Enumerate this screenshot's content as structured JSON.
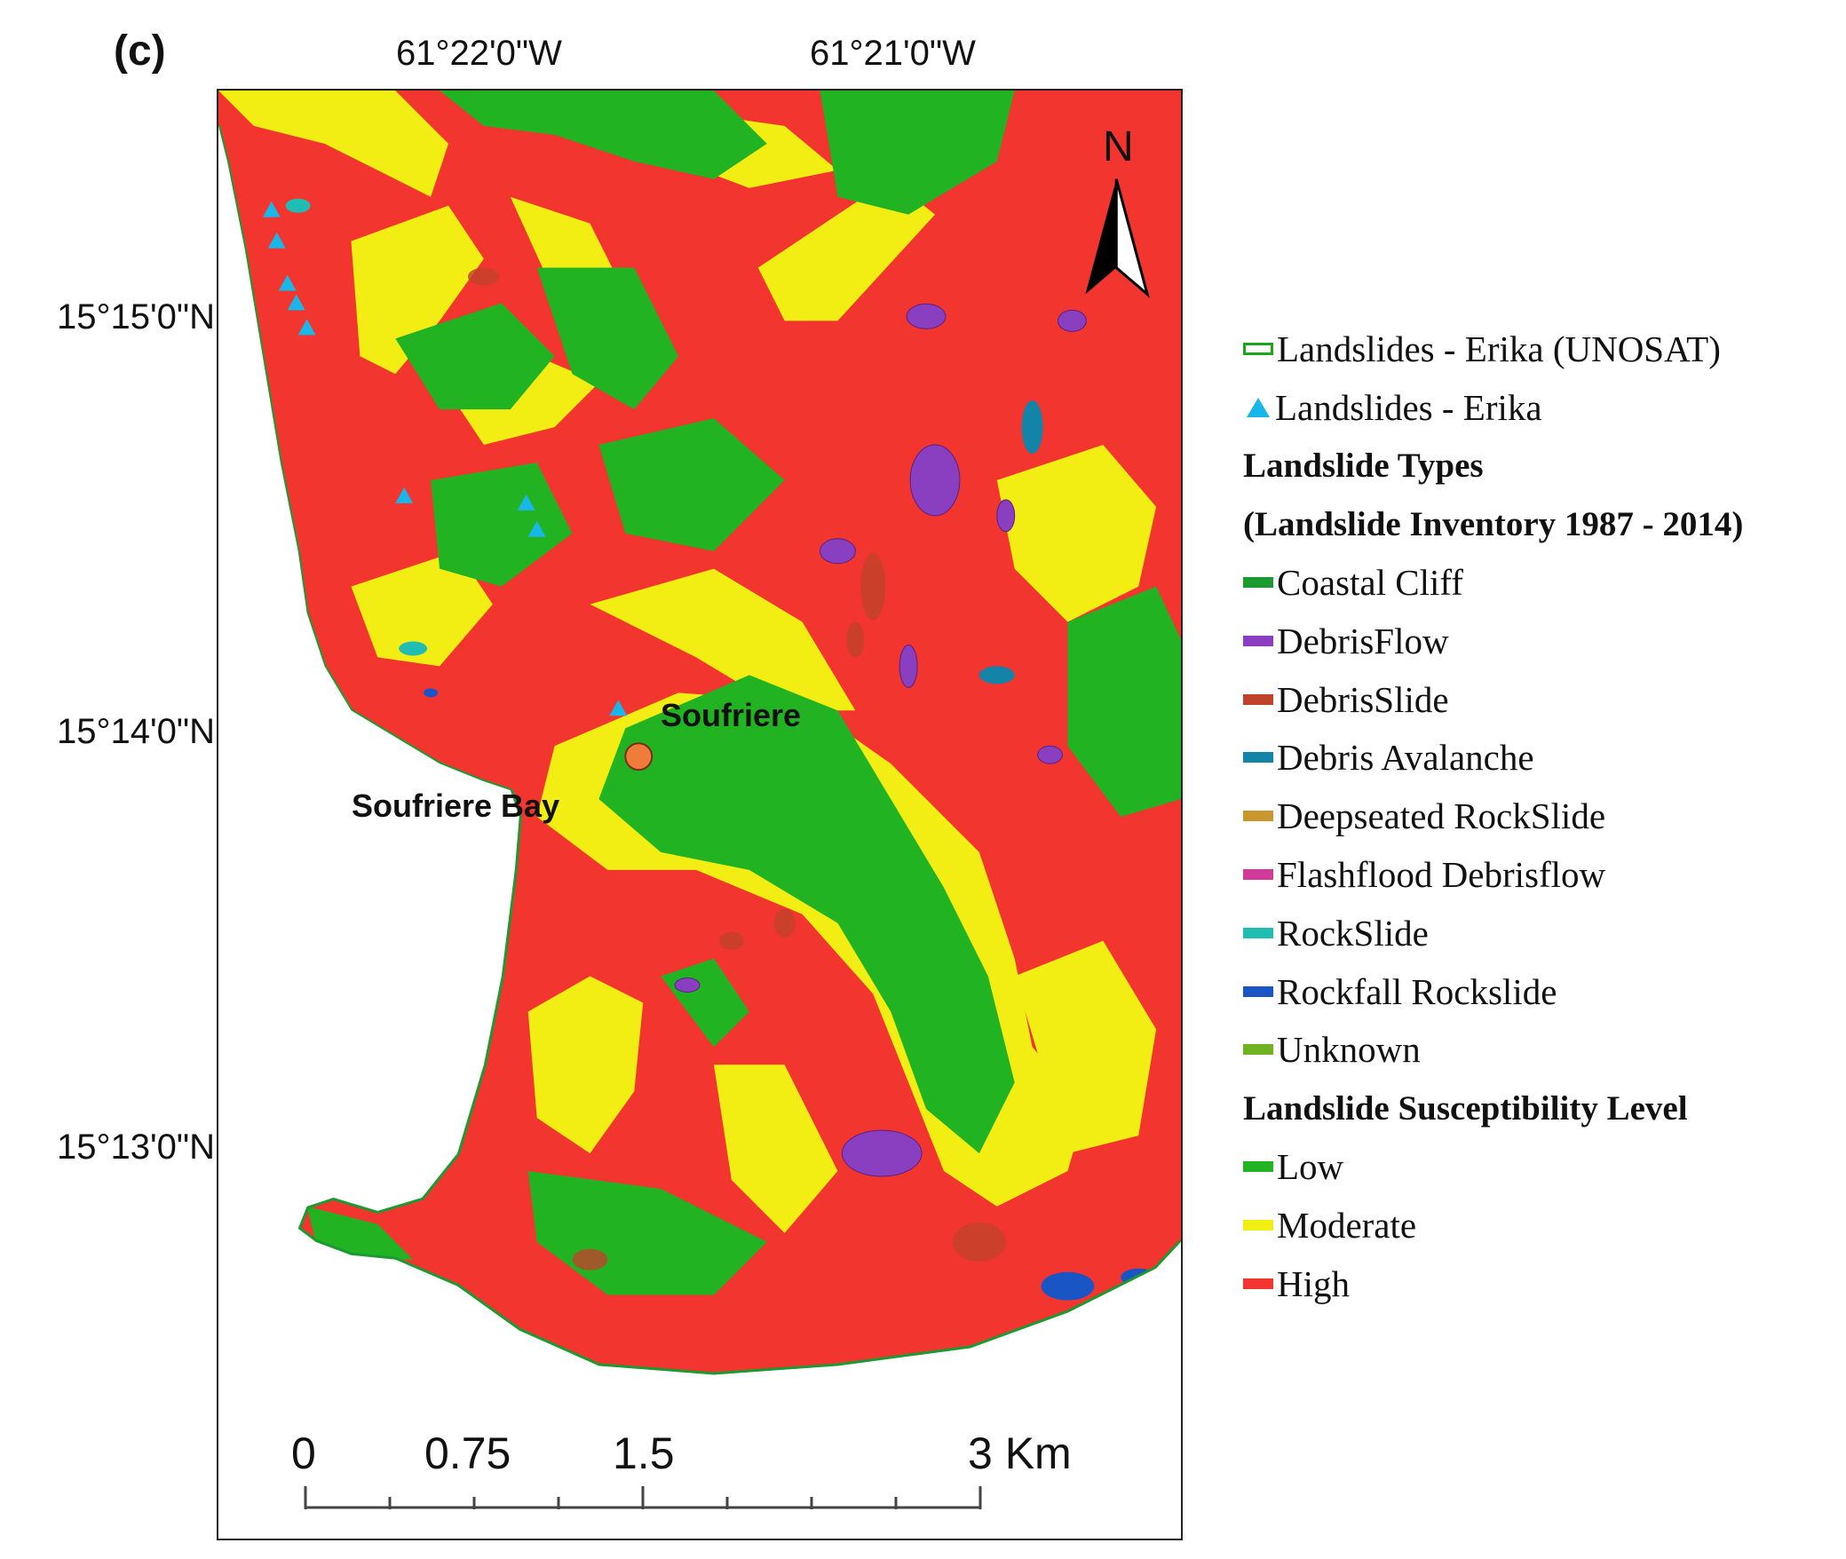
{
  "panel_label": "(c)",
  "longitude_labels": [
    "61°22'0\"W",
    "61°21'0\"W"
  ],
  "latitude_labels": [
    "15°15'0\"N",
    "15°14'0\"N",
    "15°13'0\"N"
  ],
  "north_arrow": {
    "label": "N",
    "icon": "north-arrow-icon"
  },
  "places": {
    "town": "Soufriere",
    "bay": "Soufriere Bay"
  },
  "scale_bar": {
    "labels": [
      "0",
      "0.75",
      "1.5",
      "3 Km"
    ]
  },
  "colors": {
    "low": "#22b322",
    "moderate": "#f2ee14",
    "high": "#f2352e",
    "coastal_cliff": "#1a9a30",
    "debris_flow": "#8a3fc0",
    "debris_slide": "#c0422a",
    "debris_avalanche": "#1483a8",
    "deepseated_rockslide": "#c8972e",
    "flashflood_debrisflow": "#d23a9a",
    "rockslide": "#20bdb3",
    "rockfall_rockslide": "#1a55c6",
    "unknown": "#6fb320",
    "erika_points": "#19b6ea",
    "town_marker": "#f07c3c"
  },
  "legend": {
    "unosat": "Landslides - Erika (UNOSAT)",
    "erika": "Landslides - Erika",
    "types_heading": "Landslide Types",
    "inventory_heading": "(Landslide Inventory 1987 - 2014)",
    "types": [
      "Coastal Cliff",
      "DebrisFlow",
      "DebrisSlide",
      "Debris Avalanche",
      "Deepseated RockSlide",
      "Flashflood Debrisflow",
      "RockSlide",
      "Rockfall Rockslide",
      "Unknown"
    ],
    "susceptibility_heading": "Landslide Susceptibility Level",
    "levels": [
      "Low",
      "Moderate",
      "High"
    ]
  }
}
